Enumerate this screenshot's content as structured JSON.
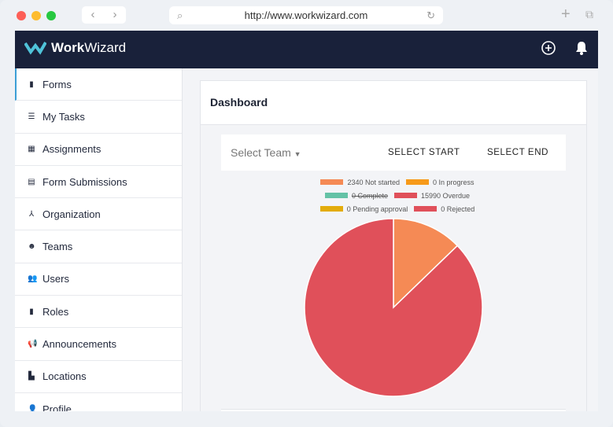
{
  "browser": {
    "url": "http://www.workwizard.com",
    "back": "‹",
    "forward": "›"
  },
  "app": {
    "brand": "WorkWizard",
    "brand_bold": "Work",
    "brand_light": "Wizard"
  },
  "sidebar": {
    "items": [
      {
        "label": "Forms",
        "icon": "form-icon",
        "glyph": "▮"
      },
      {
        "label": "My Tasks",
        "icon": "task-list-icon",
        "glyph": "☰"
      },
      {
        "label": "Assignments",
        "icon": "calendar-icon",
        "glyph": "▦"
      },
      {
        "label": "Form Submissions",
        "icon": "file-icon",
        "glyph": "▤"
      },
      {
        "label": "Organization",
        "icon": "sitemap-icon",
        "glyph": "⅄"
      },
      {
        "label": "Teams",
        "icon": "team-icon",
        "glyph": "☻"
      },
      {
        "label": "Users",
        "icon": "users-icon",
        "glyph": "👥"
      },
      {
        "label": "Roles",
        "icon": "roles-icon",
        "glyph": "▮"
      },
      {
        "label": "Announcements",
        "icon": "megaphone-icon",
        "glyph": "📢"
      },
      {
        "label": "Locations",
        "icon": "building-icon",
        "glyph": "▙"
      },
      {
        "label": "Profile",
        "icon": "user-icon",
        "glyph": "👤"
      }
    ]
  },
  "dashboard": {
    "title": "Dashboard",
    "select_team": "Select Team",
    "select_start": "SELECT START",
    "select_end": "SELECT END"
  },
  "chart_data": {
    "type": "pie",
    "series": [
      {
        "name": "Not started",
        "value": 2340,
        "color": "#f58a55",
        "label": "2340 Not started"
      },
      {
        "name": "In progress",
        "value": 0,
        "color": "#f79a1a",
        "label": "0 In progress"
      },
      {
        "name": "Complete",
        "value": 0,
        "color": "#64c2a6",
        "label": "0 Complete",
        "hidden": true
      },
      {
        "name": "Overdue",
        "value": 15990,
        "color": "#e0505a",
        "label": "15990 Overdue"
      },
      {
        "name": "Pending approval",
        "value": 0,
        "color": "#e3ac0b",
        "label": "0 Pending approval"
      },
      {
        "name": "Rejected",
        "value": 0,
        "color": "#e0505a",
        "label": "0 Rejected"
      }
    ],
    "legend": "top"
  }
}
